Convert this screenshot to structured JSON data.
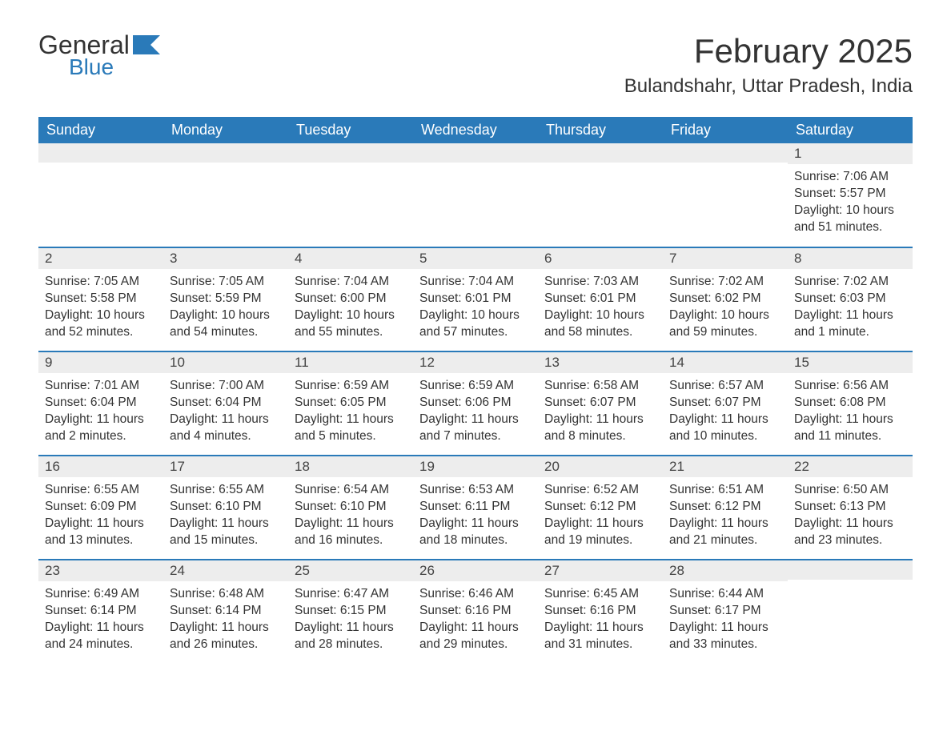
{
  "brand": {
    "word1": "General",
    "word2": "Blue",
    "flag_color": "#2a7ab9"
  },
  "title": "February 2025",
  "location": "Bulandshahr, Uttar Pradesh, India",
  "weekday_headers": [
    "Sunday",
    "Monday",
    "Tuesday",
    "Wednesday",
    "Thursday",
    "Friday",
    "Saturday"
  ],
  "colors": {
    "header_bg": "#2a7ab9",
    "header_text": "#ffffff",
    "row_divider": "#2a7ab9",
    "daynum_bg": "#ededed",
    "text": "#333333"
  },
  "fonts": {
    "title_size": 42,
    "location_size": 24,
    "weekday_size": 18,
    "daynum_size": 17,
    "body_size": 15.5
  },
  "weeks": [
    [
      {
        "day": "",
        "sunrise": "",
        "sunset": "",
        "daylight": ""
      },
      {
        "day": "",
        "sunrise": "",
        "sunset": "",
        "daylight": ""
      },
      {
        "day": "",
        "sunrise": "",
        "sunset": "",
        "daylight": ""
      },
      {
        "day": "",
        "sunrise": "",
        "sunset": "",
        "daylight": ""
      },
      {
        "day": "",
        "sunrise": "",
        "sunset": "",
        "daylight": ""
      },
      {
        "day": "",
        "sunrise": "",
        "sunset": "",
        "daylight": ""
      },
      {
        "day": "1",
        "sunrise": "Sunrise: 7:06 AM",
        "sunset": "Sunset: 5:57 PM",
        "daylight": "Daylight: 10 hours and 51 minutes."
      }
    ],
    [
      {
        "day": "2",
        "sunrise": "Sunrise: 7:05 AM",
        "sunset": "Sunset: 5:58 PM",
        "daylight": "Daylight: 10 hours and 52 minutes."
      },
      {
        "day": "3",
        "sunrise": "Sunrise: 7:05 AM",
        "sunset": "Sunset: 5:59 PM",
        "daylight": "Daylight: 10 hours and 54 minutes."
      },
      {
        "day": "4",
        "sunrise": "Sunrise: 7:04 AM",
        "sunset": "Sunset: 6:00 PM",
        "daylight": "Daylight: 10 hours and 55 minutes."
      },
      {
        "day": "5",
        "sunrise": "Sunrise: 7:04 AM",
        "sunset": "Sunset: 6:01 PM",
        "daylight": "Daylight: 10 hours and 57 minutes."
      },
      {
        "day": "6",
        "sunrise": "Sunrise: 7:03 AM",
        "sunset": "Sunset: 6:01 PM",
        "daylight": "Daylight: 10 hours and 58 minutes."
      },
      {
        "day": "7",
        "sunrise": "Sunrise: 7:02 AM",
        "sunset": "Sunset: 6:02 PM",
        "daylight": "Daylight: 10 hours and 59 minutes."
      },
      {
        "day": "8",
        "sunrise": "Sunrise: 7:02 AM",
        "sunset": "Sunset: 6:03 PM",
        "daylight": "Daylight: 11 hours and 1 minute."
      }
    ],
    [
      {
        "day": "9",
        "sunrise": "Sunrise: 7:01 AM",
        "sunset": "Sunset: 6:04 PM",
        "daylight": "Daylight: 11 hours and 2 minutes."
      },
      {
        "day": "10",
        "sunrise": "Sunrise: 7:00 AM",
        "sunset": "Sunset: 6:04 PM",
        "daylight": "Daylight: 11 hours and 4 minutes."
      },
      {
        "day": "11",
        "sunrise": "Sunrise: 6:59 AM",
        "sunset": "Sunset: 6:05 PM",
        "daylight": "Daylight: 11 hours and 5 minutes."
      },
      {
        "day": "12",
        "sunrise": "Sunrise: 6:59 AM",
        "sunset": "Sunset: 6:06 PM",
        "daylight": "Daylight: 11 hours and 7 minutes."
      },
      {
        "day": "13",
        "sunrise": "Sunrise: 6:58 AM",
        "sunset": "Sunset: 6:07 PM",
        "daylight": "Daylight: 11 hours and 8 minutes."
      },
      {
        "day": "14",
        "sunrise": "Sunrise: 6:57 AM",
        "sunset": "Sunset: 6:07 PM",
        "daylight": "Daylight: 11 hours and 10 minutes."
      },
      {
        "day": "15",
        "sunrise": "Sunrise: 6:56 AM",
        "sunset": "Sunset: 6:08 PM",
        "daylight": "Daylight: 11 hours and 11 minutes."
      }
    ],
    [
      {
        "day": "16",
        "sunrise": "Sunrise: 6:55 AM",
        "sunset": "Sunset: 6:09 PM",
        "daylight": "Daylight: 11 hours and 13 minutes."
      },
      {
        "day": "17",
        "sunrise": "Sunrise: 6:55 AM",
        "sunset": "Sunset: 6:10 PM",
        "daylight": "Daylight: 11 hours and 15 minutes."
      },
      {
        "day": "18",
        "sunrise": "Sunrise: 6:54 AM",
        "sunset": "Sunset: 6:10 PM",
        "daylight": "Daylight: 11 hours and 16 minutes."
      },
      {
        "day": "19",
        "sunrise": "Sunrise: 6:53 AM",
        "sunset": "Sunset: 6:11 PM",
        "daylight": "Daylight: 11 hours and 18 minutes."
      },
      {
        "day": "20",
        "sunrise": "Sunrise: 6:52 AM",
        "sunset": "Sunset: 6:12 PM",
        "daylight": "Daylight: 11 hours and 19 minutes."
      },
      {
        "day": "21",
        "sunrise": "Sunrise: 6:51 AM",
        "sunset": "Sunset: 6:12 PM",
        "daylight": "Daylight: 11 hours and 21 minutes."
      },
      {
        "day": "22",
        "sunrise": "Sunrise: 6:50 AM",
        "sunset": "Sunset: 6:13 PM",
        "daylight": "Daylight: 11 hours and 23 minutes."
      }
    ],
    [
      {
        "day": "23",
        "sunrise": "Sunrise: 6:49 AM",
        "sunset": "Sunset: 6:14 PM",
        "daylight": "Daylight: 11 hours and 24 minutes."
      },
      {
        "day": "24",
        "sunrise": "Sunrise: 6:48 AM",
        "sunset": "Sunset: 6:14 PM",
        "daylight": "Daylight: 11 hours and 26 minutes."
      },
      {
        "day": "25",
        "sunrise": "Sunrise: 6:47 AM",
        "sunset": "Sunset: 6:15 PM",
        "daylight": "Daylight: 11 hours and 28 minutes."
      },
      {
        "day": "26",
        "sunrise": "Sunrise: 6:46 AM",
        "sunset": "Sunset: 6:16 PM",
        "daylight": "Daylight: 11 hours and 29 minutes."
      },
      {
        "day": "27",
        "sunrise": "Sunrise: 6:45 AM",
        "sunset": "Sunset: 6:16 PM",
        "daylight": "Daylight: 11 hours and 31 minutes."
      },
      {
        "day": "28",
        "sunrise": "Sunrise: 6:44 AM",
        "sunset": "Sunset: 6:17 PM",
        "daylight": "Daylight: 11 hours and 33 minutes."
      },
      {
        "day": "",
        "sunrise": "",
        "sunset": "",
        "daylight": ""
      }
    ]
  ]
}
